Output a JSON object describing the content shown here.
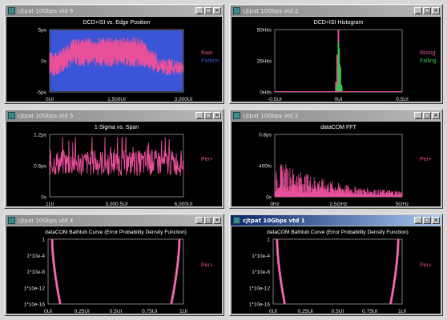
{
  "windows": [
    {
      "title": "cjtpat 10Gbps vtd 6",
      "active": false,
      "buttons": [
        "_",
        "□",
        "×"
      ],
      "chart_data": {
        "type": "area",
        "title": "DCD+ISI vs. Edge Position",
        "x_ticks": [
          "0UI",
          "1,500UI",
          "3,000UI"
        ],
        "y_ticks": [
          "5ps",
          "0s",
          "-5ps"
        ],
        "xlim": [
          0,
          3000
        ],
        "ylim": [
          -5,
          5
        ],
        "series": [
          {
            "name": "Raw",
            "color": "#e8509a",
            "profile": {
              "x": [
                0,
                200,
                500,
                1200,
                2000,
                2500,
                3000
              ],
              "upper": [
                1.5,
                1.5,
                3.5,
                3.8,
                3.8,
                0.3,
                0.3
              ],
              "lower": [
                -2.5,
                -2.5,
                -0.8,
                -1.0,
                -1.0,
                -2.3,
                -2.3
              ]
            }
          },
          {
            "name": "Pattern",
            "color": "#3a55d8",
            "profile": {
              "x": [
                0,
                3000
              ],
              "upper": [
                5,
                5
              ],
              "lower": [
                -5,
                -5
              ]
            }
          }
        ]
      }
    },
    {
      "title": "cjtpat 10Gbps vtd 2",
      "active": false,
      "buttons": [
        "_",
        "□",
        "×"
      ],
      "chart_data": {
        "type": "bar",
        "title": "DCD+ISI Histogram",
        "x_ticks": [
          "-0.5UI",
          "0UI",
          "0.5UI"
        ],
        "y_ticks": [
          "50Hits",
          "25Hits",
          "0Hits"
        ],
        "xlim": [
          -0.5,
          0.5
        ],
        "ylim": [
          0,
          50
        ],
        "series": [
          {
            "name": "Rising",
            "color": "#e8509a",
            "x": [
              -0.02,
              -0.01,
              0.0,
              0.01,
              0.02
            ],
            "values": [
              8,
              30,
              50,
              22,
              6
            ]
          },
          {
            "name": "Falling",
            "color": "#3fbf4a",
            "x": [
              -0.015,
              0.0,
              0.005,
              0.015,
              0.025
            ],
            "values": [
              6,
              40,
              35,
              20,
              5
            ]
          }
        ]
      }
    },
    {
      "title": "cjtpat 10Gbps vtd 5",
      "active": false,
      "buttons": [
        "_",
        "□",
        "×"
      ],
      "chart_data": {
        "type": "line",
        "title": "1-Sigma vs. Span",
        "x_ticks": [
          "1UI",
          "3,000.5UI",
          "6,000UI"
        ],
        "y_ticks": [
          "1.2ps",
          "0.6ps",
          "0s"
        ],
        "xlim": [
          1,
          6000
        ],
        "ylim": [
          0,
          1.2
        ],
        "series": [
          {
            "name": "Per+",
            "color": "#e8509a",
            "mean": 0.65,
            "spread": 0.25
          }
        ]
      }
    },
    {
      "title": "cjtpat 10Gbps vtd 2",
      "active": false,
      "buttons": [
        "_",
        "□",
        "×"
      ],
      "chart_data": {
        "type": "line",
        "title": "dataCOM FFT",
        "x_ticks": [
          "0Hz",
          "2.5GHz",
          "5GHz"
        ],
        "y_ticks": [
          "0.8ps",
          "400fs",
          "0s"
        ],
        "xlim": [
          0,
          5
        ],
        "ylim": [
          0,
          0.8
        ],
        "series": [
          {
            "name": "Per+",
            "color": "#e8509a",
            "envelope": {
              "x": [
                0,
                0.3,
                1,
                2,
                3,
                4,
                5
              ],
              "y": [
                0.3,
                0.45,
                0.33,
                0.22,
                0.14,
                0.1,
                0.08
              ]
            }
          }
        ]
      }
    },
    {
      "title": "cjtpat 10Gbps vtd 4",
      "active": false,
      "buttons": [
        "_",
        "□",
        "×"
      ],
      "chart_data": {
        "type": "line",
        "title": "dataCOM Bathtub Curve (Error Probability Density Function)",
        "x_ticks": [
          "0UI",
          "0.25UI",
          "0.5UI",
          "0.75UI",
          "1UI"
        ],
        "y_ticks": [
          "1",
          "1*10e-4",
          "1*10e-8",
          "1*10e-12",
          "1*10e-16"
        ],
        "xlim": [
          0,
          1
        ],
        "ylim": [
          -16,
          0
        ],
        "yscale": "log",
        "series": [
          {
            "name": "Per+",
            "color": "#e8509a",
            "left_edge": 0.03,
            "right_edge": 0.97
          }
        ]
      }
    },
    {
      "title": "cjtpat 10Gbps vtd 1",
      "active": true,
      "buttons": [
        "_",
        "□",
        "×"
      ],
      "chart_data": {
        "type": "line",
        "title": "dataCOM Bathtub Curve (Error Probability Density Function)",
        "x_ticks": [
          "0UI",
          "0.25UI",
          "0.5UI",
          "0.75UI",
          "1UI"
        ],
        "y_ticks": [
          "1",
          "1*10e-4",
          "1*10e-8",
          "1*10e-12",
          "1*10e-16"
        ],
        "xlim": [
          0,
          1
        ],
        "ylim": [
          -16,
          0
        ],
        "yscale": "log",
        "series": [
          {
            "name": "Per+",
            "color": "#e8509a",
            "left_edge": 0.03,
            "right_edge": 0.97
          }
        ]
      }
    }
  ]
}
